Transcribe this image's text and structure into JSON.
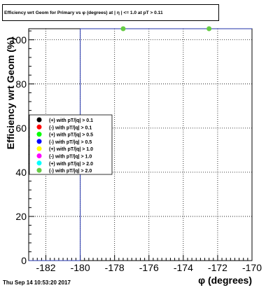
{
  "chart_data": {
    "type": "scatter",
    "title": "Efficiency wrt Geom for Primary vs φ (degrees) at | η | <= 1.0 at pT > 0.11",
    "xlabel": "φ (degrees)",
    "ylabel": "Efficiency wrt Geom (%)",
    "xlim": [
      -183,
      -170
    ],
    "ylim": [
      0,
      105
    ],
    "x_ticks": [
      "-182",
      "-180",
      "-178",
      "-176",
      "-174",
      "-172",
      "-170"
    ],
    "x_tick_values": [
      -182,
      -180,
      -178,
      -176,
      -174,
      -172,
      -170
    ],
    "y_ticks": [
      "0",
      "20",
      "40",
      "60",
      "80",
      "100"
    ],
    "y_tick_values": [
      0,
      20,
      40,
      60,
      80,
      100
    ],
    "grid": true,
    "vertical_line_x": -180,
    "legend_placement": "left-middle",
    "series": [
      {
        "name": "(+) with pT/|q| > 0.1",
        "color": "#000000",
        "points": []
      },
      {
        "name": "(-) with pT/|q| > 0.1",
        "color": "#ff0000",
        "points": []
      },
      {
        "name": "(+) with pT/|q| > 0.5",
        "color": "#00ff00",
        "points": []
      },
      {
        "name": "(-) with pT/|q| > 0.5",
        "color": "#0000ff",
        "points": []
      },
      {
        "name": "(+) with pT/|q| > 1.0",
        "color": "#ffff00",
        "points": []
      },
      {
        "name": "(-) with pT/|q| > 1.0",
        "color": "#ff00ff",
        "points": []
      },
      {
        "name": "(+) with pT/|q| > 2.0",
        "color": "#00ffff",
        "points": []
      },
      {
        "name": "(-) with pT/|q| > 2.0",
        "color": "#66cc44",
        "points": [
          [
            -177.5,
            105
          ],
          [
            -172.5,
            105
          ]
        ]
      }
    ]
  },
  "timestamp": "Thu Sep 14 10:53:20 2017"
}
